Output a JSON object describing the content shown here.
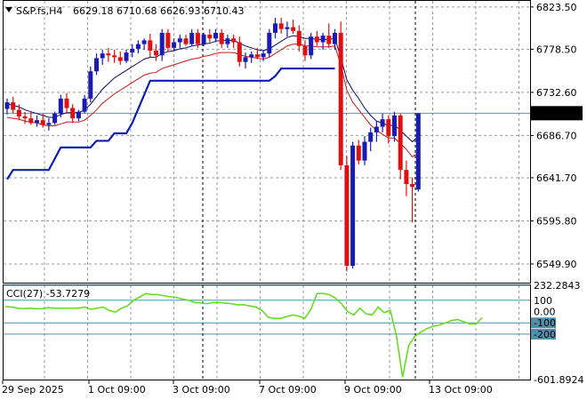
{
  "header": {
    "symbol": "S&P.fs,H4",
    "ohlc": "6629.18 6710.68 6626.93 6710.43"
  },
  "chart_data": [
    {
      "type": "candlestick",
      "ylim": [
        6530,
        6830
      ],
      "price_ticks": [
        "6823.50",
        "6778.50",
        "6732.60",
        "6686.70",
        "6641.70",
        "6595.80",
        "6549.90"
      ],
      "current_price": 6710.43,
      "current_price_label": "6710.43",
      "x_labels": [
        "29 Sep 2025",
        "1 Oct 09:00",
        "3 Oct 09:00",
        "7 Oct 09:00",
        "9 Oct 09:00",
        "13 Oct 09:00"
      ],
      "candles": [
        [
          6715,
          6726,
          6709,
          6722
        ],
        [
          6722,
          6728,
          6710,
          6714
        ],
        [
          6714,
          6720,
          6703,
          6707
        ],
        [
          6707,
          6712,
          6699,
          6705
        ],
        [
          6705,
          6712,
          6698,
          6700
        ],
        [
          6700,
          6708,
          6696,
          6703
        ],
        [
          6703,
          6710,
          6695,
          6698
        ],
        [
          6698,
          6705,
          6692,
          6700
        ],
        [
          6700,
          6712,
          6698,
          6710
        ],
        [
          6710,
          6730,
          6706,
          6726
        ],
        [
          6726,
          6732,
          6710,
          6716
        ],
        [
          6716,
          6720,
          6700,
          6705
        ],
        [
          6705,
          6714,
          6702,
          6712
        ],
        [
          6712,
          6730,
          6710,
          6726
        ],
        [
          6726,
          6760,
          6722,
          6755
        ],
        [
          6755,
          6774,
          6751,
          6769
        ],
        [
          6769,
          6778,
          6762,
          6774
        ],
        [
          6774,
          6780,
          6765,
          6772
        ],
        [
          6772,
          6778,
          6764,
          6770
        ],
        [
          6770,
          6776,
          6762,
          6766
        ],
        [
          6766,
          6778,
          6764,
          6775
        ],
        [
          6775,
          6784,
          6770,
          6779
        ],
        [
          6779,
          6788,
          6774,
          6784
        ],
        [
          6784,
          6790,
          6778,
          6788
        ],
        [
          6788,
          6795,
          6770,
          6777
        ],
        [
          6777,
          6784,
          6766,
          6772
        ],
        [
          6772,
          6800,
          6766,
          6796
        ],
        [
          6796,
          6800,
          6776,
          6780
        ],
        [
          6780,
          6790,
          6776,
          6786
        ],
        [
          6786,
          6794,
          6780,
          6790
        ],
        [
          6790,
          6794,
          6782,
          6784
        ],
        [
          6784,
          6800,
          6782,
          6796
        ],
        [
          6796,
          6800,
          6780,
          6784
        ],
        [
          6784,
          6796,
          6782,
          6794
        ],
        [
          6794,
          6800,
          6786,
          6790
        ],
        [
          6790,
          6800,
          6786,
          6796
        ],
        [
          6796,
          6800,
          6780,
          6784
        ],
        [
          6784,
          6794,
          6780,
          6790
        ],
        [
          6790,
          6794,
          6780,
          6786
        ],
        [
          6786,
          6792,
          6760,
          6765
        ],
        [
          6765,
          6775,
          6758,
          6770
        ],
        [
          6770,
          6776,
          6764,
          6773
        ],
        [
          6773,
          6780,
          6768,
          6770
        ],
        [
          6770,
          6778,
          6766,
          6774
        ],
        [
          6774,
          6800,
          6770,
          6796
        ],
        [
          6796,
          6812,
          6790,
          6806
        ],
        [
          6806,
          6812,
          6795,
          6800
        ],
        [
          6800,
          6808,
          6792,
          6802
        ],
        [
          6802,
          6810,
          6795,
          6798
        ],
        [
          6798,
          6804,
          6776,
          6782
        ],
        [
          6782,
          6788,
          6766,
          6772
        ],
        [
          6772,
          6796,
          6768,
          6792
        ],
        [
          6792,
          6798,
          6782,
          6786
        ],
        [
          6786,
          6796,
          6778,
          6793
        ],
        [
          6793,
          6806,
          6780,
          6784
        ],
        [
          6784,
          6800,
          6778,
          6796
        ],
        [
          6796,
          6808,
          6650,
          6655
        ],
        [
          6655,
          6665,
          6542,
          6548
        ],
        [
          6548,
          6680,
          6545,
          6676
        ],
        [
          6676,
          6682,
          6656,
          6660
        ],
        [
          6660,
          6686,
          6655,
          6680
        ],
        [
          6680,
          6695,
          6670,
          6690
        ],
        [
          6690,
          6702,
          6680,
          6696
        ],
        [
          6696,
          6710,
          6690,
          6704
        ],
        [
          6704,
          6708,
          6678,
          6686
        ],
        [
          6686,
          6712,
          6680,
          6708
        ],
        [
          6708,
          6710,
          6640,
          6650
        ],
        [
          6650,
          6660,
          6622,
          6635
        ],
        [
          6635,
          6642,
          6594,
          6632
        ],
        [
          6629.18,
          6710.68,
          6626.93,
          6710.43
        ]
      ],
      "ma_fast": [
        6720,
        6719,
        6717,
        6714,
        6712,
        6710,
        6708,
        6706,
        6706,
        6709,
        6711,
        6711,
        6711,
        6714,
        6720,
        6728,
        6736,
        6742,
        6748,
        6752,
        6756,
        6760,
        6764,
        6768,
        6770,
        6770,
        6774,
        6776,
        6777,
        6779,
        6780,
        6782,
        6783,
        6784,
        6785,
        6787,
        6788,
        6788,
        6788,
        6785,
        6782,
        6780,
        6778,
        6777,
        6779,
        6783,
        6787,
        6791,
        6793,
        6792,
        6790,
        6790,
        6789,
        6789,
        6789,
        6790,
        6770,
        6746,
        6735,
        6726,
        6716,
        6708,
        6702,
        6700,
        6697,
        6698,
        6692,
        6686,
        6680,
        6686
      ],
      "ma_slow": [
        6706,
        6705,
        6704,
        6702,
        6701,
        6700,
        6698,
        6697,
        6697,
        6699,
        6701,
        6701,
        6701,
        6703,
        6708,
        6714,
        6721,
        6726,
        6731,
        6735,
        6739,
        6743,
        6747,
        6751,
        6753,
        6754,
        6758,
        6760,
        6762,
        6764,
        6766,
        6768,
        6769,
        6771,
        6772,
        6774,
        6775,
        6775,
        6775,
        6773,
        6771,
        6770,
        6769,
        6768,
        6770,
        6774,
        6778,
        6782,
        6784,
        6784,
        6782,
        6782,
        6781,
        6781,
        6781,
        6782,
        6762,
        6735,
        6722,
        6714,
        6706,
        6698,
        6692,
        6688,
        6684,
        6684,
        6678,
        6672,
        6664,
        6668
      ],
      "trend_line": [
        6640,
        6650,
        6650,
        6650,
        6650,
        6650,
        6650,
        6650,
        6662,
        6674,
        6674,
        6674,
        6674,
        6674,
        6674,
        6681,
        6681,
        6681,
        6689,
        6689,
        6689,
        6700,
        6715,
        6730,
        6745,
        6745,
        6745,
        6745,
        6745,
        6745,
        6745,
        6745,
        6745,
        6745,
        6745,
        6745,
        6745,
        6745,
        6745,
        6745,
        6745,
        6745,
        6745,
        6745,
        6745,
        6750,
        6758,
        6758,
        6758,
        6758,
        6758,
        6758,
        6758,
        6758,
        6758,
        6758
      ]
    },
    {
      "type": "line",
      "label": "CCI(27) -53.7279",
      "ylim": [
        -601.8924,
        232.2843
      ],
      "level_labels": [
        "232.2843",
        "100",
        "0.00",
        "-100",
        "-200",
        "-601.8924"
      ],
      "values": [
        45,
        40,
        30,
        25,
        30,
        25,
        25,
        35,
        30,
        30,
        30,
        30,
        30,
        40,
        20,
        30,
        40,
        10,
        -5,
        30,
        50,
        100,
        130,
        160,
        150,
        150,
        140,
        130,
        125,
        110,
        100,
        80,
        75,
        70,
        80,
        80,
        75,
        70,
        60,
        60,
        50,
        40,
        10,
        -50,
        -60,
        -60,
        -45,
        -30,
        -40,
        -60,
        20,
        160,
        160,
        150,
        120,
        70,
        0,
        -30,
        30,
        -20,
        -30,
        40,
        -10,
        10,
        -220,
        -580,
        -300,
        -220,
        -180,
        -150,
        -130,
        -120,
        -100,
        -80,
        -70,
        -90,
        -110,
        -110,
        -54
      ]
    }
  ]
}
